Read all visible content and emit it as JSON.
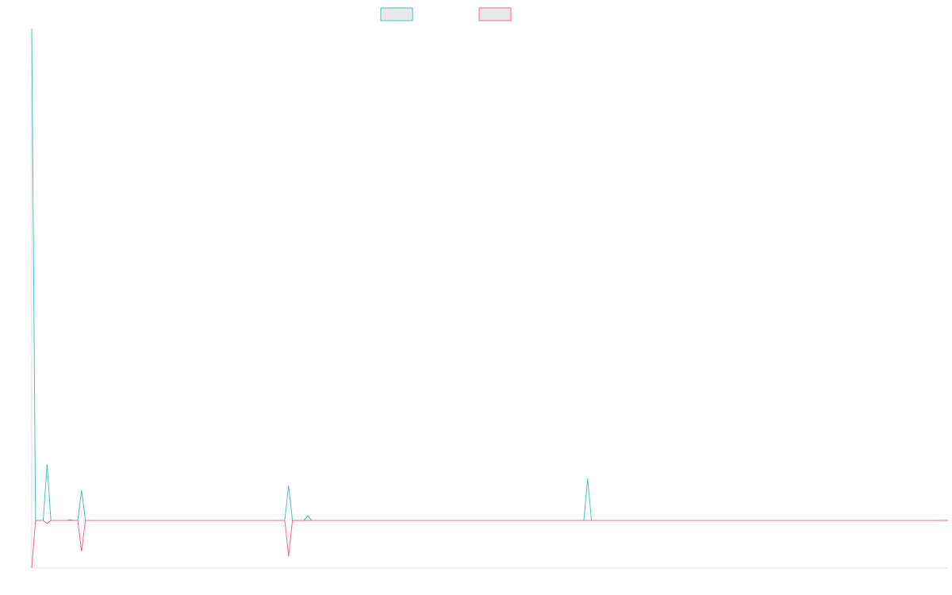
{
  "chart_data": {
    "type": "line",
    "categories": [
      null,
      null,
      null,
      null,
      null,
      null,
      null,
      null,
      null,
      null,
      null,
      null,
      null,
      null,
      null,
      null,
      null,
      null,
      null,
      null,
      null,
      null,
      null,
      null,
      null,
      null,
      null,
      null,
      null,
      null,
      null,
      null,
      null,
      null,
      null,
      null,
      null,
      null,
      null,
      null,
      null,
      null,
      null,
      null,
      null,
      null,
      null,
      null,
      null,
      null,
      null,
      null,
      null,
      null,
      null,
      null,
      null,
      null,
      null,
      null,
      null,
      null,
      null,
      null,
      null,
      null,
      null,
      null,
      null,
      null,
      null,
      null,
      null,
      null,
      null,
      null,
      null,
      null,
      null,
      null,
      null,
      null,
      null,
      null,
      null,
      null,
      null,
      null,
      null,
      null,
      null,
      null,
      null,
      null,
      null,
      null,
      null,
      null,
      null,
      null,
      null,
      null,
      null,
      null,
      null,
      null,
      null,
      null,
      null,
      null,
      null,
      null,
      null,
      null,
      null,
      null,
      null,
      null,
      null,
      null,
      null,
      null,
      null,
      null,
      null,
      null,
      null,
      null,
      null,
      null,
      null,
      null,
      null,
      null,
      null,
      null,
      null,
      null,
      null,
      null,
      null,
      null,
      null,
      null,
      null,
      null,
      null,
      null,
      null,
      null,
      null,
      null,
      null,
      null,
      null,
      null,
      null,
      null,
      null,
      null,
      null,
      null,
      null,
      null,
      null,
      null,
      null,
      null,
      null,
      null,
      null,
      null,
      null,
      null,
      null,
      null,
      null,
      null,
      null,
      null,
      null,
      null,
      null,
      null,
      null,
      null,
      null,
      null,
      null,
      null,
      null,
      null,
      null,
      null,
      null,
      null,
      null,
      null,
      null,
      null,
      null,
      null,
      null,
      null,
      null,
      null,
      null,
      null,
      null,
      null,
      null,
      null,
      null,
      null,
      null,
      null,
      null,
      null,
      null,
      null,
      null,
      null,
      null,
      null,
      null,
      null,
      null,
      null,
      null,
      null,
      null,
      null,
      null,
      null,
      null,
      null,
      null,
      null,
      null,
      null
    ],
    "series": [
      {
        "color": "#4bc0c0",
        "values": [
          620,
          0,
          0,
          0,
          71,
          0,
          0,
          0,
          0,
          0,
          1,
          0,
          0,
          38,
          0,
          0,
          0,
          0,
          0,
          0,
          0,
          0,
          0,
          0,
          0,
          0,
          0,
          0,
          0,
          0,
          0,
          0,
          0,
          0,
          0,
          0,
          0,
          0,
          0,
          0,
          0,
          0,
          0,
          0,
          0,
          0,
          0,
          0,
          0,
          0,
          0,
          0,
          0,
          0,
          0,
          0,
          0,
          0,
          0,
          0,
          0,
          0,
          0,
          0,
          0,
          0,
          0,
          44,
          0,
          0,
          0,
          0,
          6,
          0,
          0,
          0,
          0,
          0,
          0,
          0,
          0,
          0,
          0,
          0,
          0,
          0,
          0,
          0,
          0,
          0,
          0,
          0,
          0,
          0,
          0,
          0,
          0,
          0,
          0,
          0,
          0,
          0,
          0,
          0,
          0,
          0,
          0,
          0,
          0,
          0,
          0,
          0,
          0,
          0,
          0,
          0,
          0,
          0,
          0,
          0,
          0,
          0,
          0,
          0,
          0,
          0,
          0,
          0,
          0,
          0,
          0,
          0,
          0,
          0,
          0,
          0,
          0,
          0,
          0,
          0,
          0,
          0,
          0,
          0,
          0,
          53,
          0,
          0,
          0,
          0,
          0,
          0,
          0,
          0,
          0,
          0,
          0,
          0,
          0,
          0,
          0,
          0,
          0,
          0,
          0,
          0,
          0,
          0,
          0,
          0,
          0,
          0,
          0,
          0,
          0,
          0,
          0,
          0,
          0,
          0,
          0,
          0,
          0,
          0,
          0,
          0,
          0,
          0,
          0,
          0,
          0,
          0,
          0,
          0,
          0,
          0,
          0,
          0,
          0,
          0,
          0,
          0,
          0,
          0,
          0,
          0,
          0,
          0,
          0,
          0,
          0,
          0,
          0,
          0,
          0,
          0,
          0,
          0,
          0,
          0,
          0,
          0,
          0,
          0,
          0,
          0,
          0,
          0,
          0,
          0,
          0,
          0,
          0,
          0,
          0,
          0,
          0,
          0,
          0,
          0
        ]
      },
      {
        "color": "#ff6384",
        "values": [
          -60,
          0,
          0,
          0,
          -4,
          0,
          0,
          0,
          0,
          0,
          0,
          0,
          0,
          -39,
          0,
          0,
          0,
          0,
          0,
          0,
          0,
          0,
          0,
          0,
          0,
          0,
          0,
          0,
          0,
          0,
          0,
          0,
          0,
          0,
          0,
          0,
          0,
          0,
          0,
          0,
          0,
          0,
          0,
          0,
          0,
          0,
          0,
          0,
          0,
          0,
          0,
          0,
          0,
          0,
          0,
          0,
          0,
          0,
          0,
          0,
          0,
          0,
          0,
          0,
          0,
          0,
          0,
          -45,
          0,
          0,
          0,
          0,
          0,
          0,
          0,
          0,
          0,
          0,
          0,
          0,
          0,
          0,
          0,
          0,
          0,
          0,
          0,
          0,
          0,
          0,
          0,
          0,
          0,
          0,
          0,
          0,
          0,
          0,
          0,
          0,
          0,
          0,
          0,
          0,
          0,
          0,
          0,
          0,
          0,
          0,
          0,
          0,
          0,
          0,
          0,
          0,
          0,
          0,
          0,
          0,
          0,
          0,
          0,
          0,
          0,
          0,
          0,
          0,
          0,
          0,
          0,
          0,
          0,
          0,
          0,
          0,
          0,
          0,
          0,
          0,
          0,
          0,
          0,
          0,
          0,
          0,
          0,
          0,
          0,
          0,
          0,
          0,
          0,
          0,
          0,
          0,
          0,
          0,
          0,
          0,
          0,
          0,
          0,
          0,
          0,
          0,
          0,
          0,
          0,
          0,
          0,
          0,
          0,
          0,
          0,
          0,
          0,
          0,
          0,
          0,
          0,
          0,
          0,
          0,
          0,
          0,
          0,
          0,
          0,
          0,
          0,
          0,
          0,
          0,
          0,
          0,
          0,
          0,
          0,
          0,
          0,
          0,
          0,
          0,
          0,
          0,
          0,
          0,
          0,
          0,
          0,
          0,
          0,
          0,
          0,
          0,
          0,
          0,
          0,
          0,
          0,
          0,
          0,
          0,
          0,
          0,
          0,
          0,
          0,
          0,
          0,
          0,
          0,
          0,
          0,
          0,
          0,
          0,
          0,
          0
        ]
      }
    ],
    "ylim": [
      -60,
      620
    ]
  }
}
